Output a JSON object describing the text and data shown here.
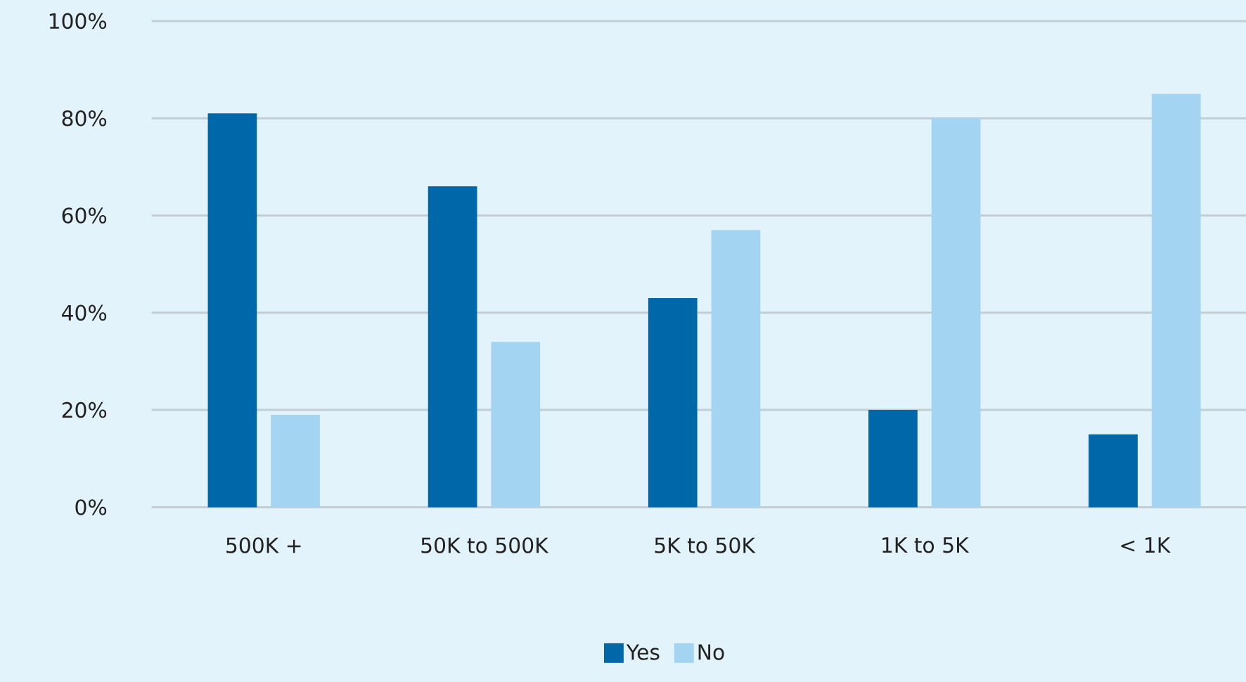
{
  "chart_data": {
    "type": "bar",
    "categories": [
      "500K +",
      "50K to 500K",
      "5K to 50K",
      "1K to 5K",
      "< 1K"
    ],
    "series": [
      {
        "name": "Yes",
        "color": "#0068a9",
        "values": [
          81,
          66,
          43,
          20,
          15
        ]
      },
      {
        "name": "No",
        "color": "#a3d5f2",
        "values": [
          19,
          34,
          57,
          80,
          85
        ]
      }
    ],
    "ylim": [
      0,
      100
    ],
    "yticks": [
      {
        "value": 0,
        "label": "0%"
      },
      {
        "value": 20,
        "label": "20%"
      },
      {
        "value": 40,
        "label": "40%"
      },
      {
        "value": 60,
        "label": "60%"
      },
      {
        "value": 80,
        "label": "80%"
      },
      {
        "value": 100,
        "label": "100%"
      }
    ],
    "grid": "y",
    "legend": "bottom"
  }
}
